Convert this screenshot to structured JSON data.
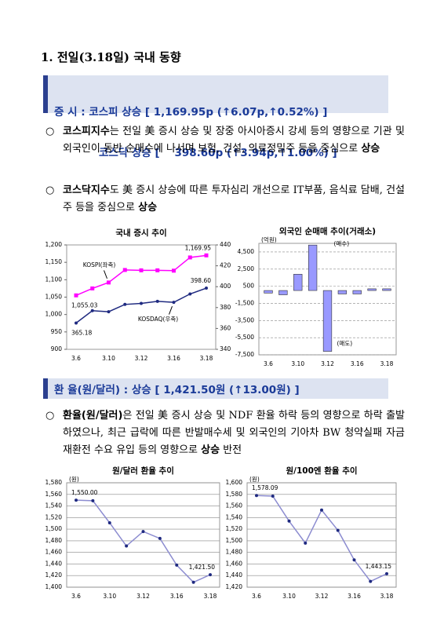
{
  "heading": "1. 전일(3.18일) 국내 동향",
  "box1": {
    "label": "증 시 :",
    "lines": [
      "코스피 상승 [ 1,169.95p (↑6.07p,↑0.52%) ]",
      "코스닥 상승 [    398.60p (↑3.94p,↑1.00%) ]"
    ]
  },
  "bullets1": [
    {
      "term": "코스피지수",
      "text": "는 전일 美 증시 상승 및 장중 아시아증시 강세 등의 영향으로 기관 및 외국인이 동반 순매수에 나서며 보험, 건설, 의료정밀주 등을 중심으로 ",
      "emphasis": "상승"
    },
    {
      "term": "코스닥지수",
      "text": "도 美 증시 상승에 따른 투자심리 개선으로 IT부품, 음식료 담배, 건설주 등을 중심으로 ",
      "emphasis": "상승"
    }
  ],
  "box2": {
    "text": "환 율(원/달러) : 상승 [ 1,421.50원 (↑13.00원) ]"
  },
  "bullets2": [
    {
      "term": "환율(원/달러)",
      "text": "은 전일 美 증시 상승 및 NDF 환율 하락 등의 영향으로 하락 출발하였으나, 최근 급락에 따른 반발매수세 및 외국인의 기아차 BW 청약실패 자금 재환전 수요 유입 등의 영향으로 ",
      "emphasis": "상승",
      "tail": " 반전"
    }
  ],
  "chart_data": [
    {
      "type": "line",
      "title": "국내 증시 추이",
      "categories": [
        "3.6",
        null,
        "3.10",
        null,
        "3.12",
        null,
        "3.16",
        null,
        "3.18"
      ],
      "series": [
        {
          "name": "KOSPI(좌축)",
          "color": "#ff00ff",
          "values": [
            1055.03,
            1075,
            1092,
            1128,
            1127,
            1127,
            1126,
            1164,
            1169.95
          ],
          "value_labels": [
            "1,055.03",
            null,
            null,
            null,
            null,
            null,
            null,
            null,
            "1,169.95"
          ]
        },
        {
          "name": "KOSDAQ(우축)",
          "color": "#1f2a80",
          "axis": "y2",
          "values": [
            365.18,
            377,
            376,
            383,
            384,
            386,
            385,
            393,
            398.6
          ],
          "value_labels": [
            "365.18",
            null,
            null,
            null,
            null,
            null,
            null,
            null,
            "398.60"
          ]
        }
      ],
      "ylim": [
        900,
        1200
      ],
      "yticks": [
        900,
        950,
        {
          "value": 1000,
          "label": "1,000"
        },
        {
          "value": 1050,
          "label": "1,050"
        },
        {
          "value": 1100,
          "label": "1,100"
        },
        {
          "value": 1150,
          "label": "1,150"
        },
        {
          "value": 1200,
          "label": "1,200"
        }
      ],
      "y2lim": [
        340,
        440
      ],
      "y2ticks": [
        340,
        360,
        380,
        400,
        420,
        440
      ],
      "grid": false
    },
    {
      "type": "bar",
      "title": "외국인 순매매 추이(거래소)",
      "unit": "(억원)",
      "categories": [
        "3.6",
        null,
        "3.10",
        null,
        "3.12",
        null,
        "3.16",
        null,
        "3.18"
      ],
      "values": [
        -300,
        -500,
        1900,
        5300,
        -7100,
        -400,
        -400,
        200,
        200
      ],
      "color": "#9999ff",
      "ylim": [
        -7500,
        5500
      ],
      "yticks": [
        {
          "value": -7500,
          "label": "-7,500"
        },
        {
          "value": -5500,
          "label": "-5,500"
        },
        {
          "value": -3500,
          "label": "-3,500"
        },
        {
          "value": -1500,
          "label": "-1,500"
        },
        500,
        {
          "value": 2500,
          "label": "2,500"
        },
        {
          "value": 4500,
          "label": "4,500"
        }
      ],
      "annotations": [
        "(매수)",
        "(매도)"
      ],
      "grid": true
    },
    {
      "type": "line",
      "title": "원/달러 환율 추이",
      "unit": "(원)",
      "categories": [
        "3.6",
        null,
        "3.10",
        null,
        "3.12",
        null,
        "3.16",
        null,
        "3.18"
      ],
      "values": [
        1550.0,
        1549,
        1511,
        1471,
        1496,
        1484,
        1438,
        1408.5,
        1421.5
      ],
      "value_labels": [
        "1,550.00",
        null,
        null,
        null,
        null,
        null,
        null,
        null,
        "1,421.50"
      ],
      "color": "#8c8cd0",
      "ylim": [
        1400,
        1580
      ],
      "yticks": [
        {
          "value": 1400,
          "label": "1,400"
        },
        {
          "value": 1420,
          "label": "1,420"
        },
        {
          "value": 1440,
          "label": "1,440"
        },
        {
          "value": 1460,
          "label": "1,460"
        },
        {
          "value": 1480,
          "label": "1,480"
        },
        {
          "value": 1500,
          "label": "1,500"
        },
        {
          "value": 1520,
          "label": "1,520"
        },
        {
          "value": 1540,
          "label": "1,540"
        },
        {
          "value": 1560,
          "label": "1,560"
        },
        {
          "value": 1580,
          "label": "1,580"
        }
      ],
      "grid": true
    },
    {
      "type": "line",
      "title": "원/100엔 환율 추이",
      "unit": "(원)",
      "categories": [
        "3.6",
        null,
        "3.10",
        null,
        "3.12",
        null,
        "3.16",
        null,
        "3.18"
      ],
      "values": [
        1578.09,
        1577,
        1534,
        1496,
        1553,
        1518,
        1467,
        1430,
        1443.15
      ],
      "value_labels": [
        "1,578.09",
        null,
        null,
        null,
        null,
        null,
        null,
        null,
        "1,443.15"
      ],
      "color": "#8c8cd0",
      "ylim": [
        1420,
        1600
      ],
      "yticks": [
        {
          "value": 1420,
          "label": "1,420"
        },
        {
          "value": 1440,
          "label": "1,440"
        },
        {
          "value": 1460,
          "label": "1,460"
        },
        {
          "value": 1480,
          "label": "1,480"
        },
        {
          "value": 1500,
          "label": "1,500"
        },
        {
          "value": 1520,
          "label": "1,520"
        },
        {
          "value": 1540,
          "label": "1,540"
        },
        {
          "value": 1560,
          "label": "1,560"
        },
        {
          "value": 1580,
          "label": "1,580"
        },
        {
          "value": 1600,
          "label": "1,600"
        }
      ],
      "grid": true
    }
  ]
}
